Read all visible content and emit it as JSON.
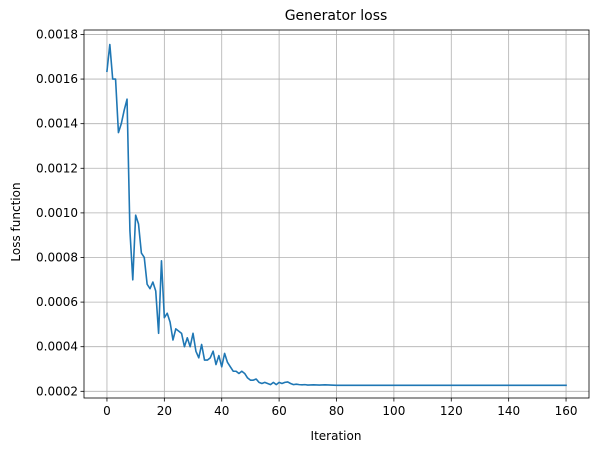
{
  "chart_data": {
    "type": "line",
    "title": "Generator loss",
    "xlabel": "Iteration",
    "ylabel": "Loss function",
    "xlim": [
      -8,
      168
    ],
    "ylim": [
      0.00017,
      0.00182
    ],
    "xticks": [
      0,
      20,
      40,
      60,
      80,
      100,
      120,
      140,
      160
    ],
    "xtick_labels": [
      "0",
      "20",
      "40",
      "60",
      "80",
      "100",
      "120",
      "140",
      "160"
    ],
    "yticks": [
      0.0002,
      0.0004,
      0.0006,
      0.0008,
      0.001,
      0.0012,
      0.0014,
      0.0016,
      0.0018
    ],
    "ytick_labels": [
      "0.0002",
      "0.0004",
      "0.0006",
      "0.0008",
      "0.0010",
      "0.0012",
      "0.0014",
      "0.0016",
      "0.0018"
    ],
    "grid": true,
    "series_color": "#1f77b4",
    "series": [
      {
        "x": [
          0,
          1,
          2,
          3,
          4,
          5,
          6,
          7,
          8,
          9,
          10,
          11,
          12,
          13,
          14,
          15,
          16,
          17,
          18,
          19,
          20,
          21,
          22,
          23,
          24,
          25,
          26,
          27,
          28,
          29,
          30,
          31,
          32,
          33,
          34,
          35,
          36,
          37,
          38,
          39,
          40,
          41,
          42,
          43,
          44,
          45,
          46,
          47,
          48,
          49,
          50,
          51,
          52,
          53,
          54,
          55,
          56,
          57,
          58,
          59,
          60,
          61,
          62,
          63,
          64,
          65,
          66,
          67,
          68,
          69,
          70,
          72,
          74,
          76,
          78,
          80,
          85,
          90,
          95,
          100,
          110,
          120,
          130,
          140,
          150,
          160
        ],
        "values": [
          0.001635,
          0.001755,
          0.0016,
          0.0016,
          0.00136,
          0.0014,
          0.00146,
          0.00151,
          0.00092,
          0.0007,
          0.00099,
          0.00095,
          0.00082,
          0.0008,
          0.00068,
          0.00066,
          0.00069,
          0.00065,
          0.00046,
          0.000785,
          0.00053,
          0.00055,
          0.00051,
          0.00043,
          0.00048,
          0.00047,
          0.00046,
          0.0004,
          0.00044,
          0.0004,
          0.00046,
          0.00038,
          0.00035,
          0.00041,
          0.00034,
          0.00034,
          0.00035,
          0.00038,
          0.00032,
          0.00036,
          0.00031,
          0.00037,
          0.00033,
          0.00031,
          0.00029,
          0.00029,
          0.00028,
          0.00029,
          0.00028,
          0.00026,
          0.00025,
          0.00025,
          0.000255,
          0.00024,
          0.000235,
          0.00024,
          0.000235,
          0.00023,
          0.00024,
          0.00023,
          0.00024,
          0.000235,
          0.00024,
          0.000242,
          0.000235,
          0.00023,
          0.000232,
          0.00023,
          0.000229,
          0.00023,
          0.000228,
          0.000229,
          0.000228,
          0.000229,
          0.000228,
          0.000227,
          0.000227,
          0.000227,
          0.000227,
          0.000227,
          0.000227,
          0.000227,
          0.000227,
          0.000227,
          0.000227,
          0.000227
        ]
      }
    ]
  }
}
